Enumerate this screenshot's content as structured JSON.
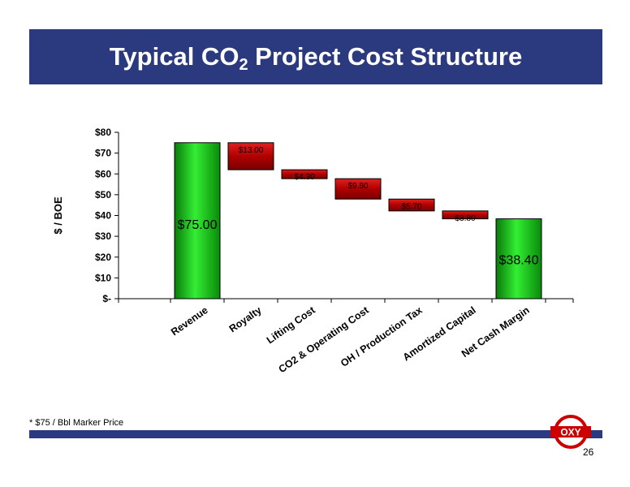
{
  "slide": {
    "title_pre": "Typical CO",
    "title_sub": "2",
    "title_post": " Project Cost Structure",
    "footnote": "* $75 / Bbl Marker Price",
    "page_number": "26",
    "logo_text": "OXY",
    "colors": {
      "title_bar": "#2b3a7e",
      "green": "#22cc22",
      "red": "#cc0000"
    }
  },
  "chart_data": {
    "type": "bar",
    "subtype": "waterfall",
    "ylabel": "$ / BOE",
    "ylim": [
      0,
      80
    ],
    "yticks": [
      0,
      10,
      20,
      30,
      40,
      50,
      60,
      70,
      80
    ],
    "ytick_labels": [
      "$-",
      "$10",
      "$20",
      "$30",
      "$40",
      "$50",
      "$60",
      "$70",
      "$80"
    ],
    "categories": [
      "Revenue",
      "Royalty",
      "Lifting Cost",
      "CO2 & Operating Cost",
      "OH / Production Tax",
      "Amortized Capital",
      "Net Cash Margin"
    ],
    "values": [
      75.0,
      -13.0,
      -4.3,
      -9.8,
      -5.7,
      -3.8,
      38.4
    ],
    "bar_kinds": [
      "total",
      "decrease",
      "decrease",
      "decrease",
      "decrease",
      "decrease",
      "total"
    ],
    "data_labels": [
      "$75.00",
      "$13.00",
      "$4.30",
      "$9.80",
      "$5.70",
      "$3.80",
      "$38.40"
    ]
  }
}
